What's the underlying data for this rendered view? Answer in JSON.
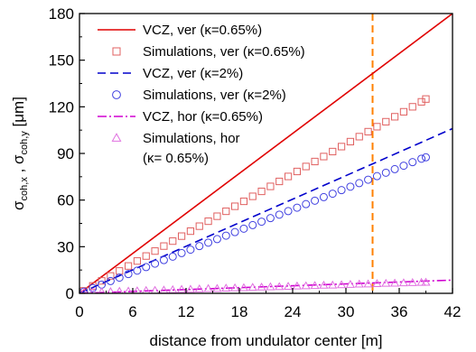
{
  "chart_data": {
    "type": "line",
    "title": "",
    "xlabel": "distance from undulator center [m]",
    "ylabel_parts": {
      "sigma1": "σ",
      "sub1": "coh,x",
      "sep": " , ",
      "sigma2": "σ",
      "sub2": "coh,y",
      "unit": " [μm]"
    },
    "xlim": [
      0,
      42
    ],
    "ylim": [
      0,
      180
    ],
    "x_ticks": [
      0,
      6,
      12,
      18,
      24,
      30,
      36,
      42
    ],
    "y_ticks": [
      0,
      30,
      60,
      90,
      120,
      150,
      180
    ],
    "grid": false,
    "legend_position": "top-left",
    "vertical_marker": {
      "x": 33,
      "color": "#FF8000",
      "style": "dashed"
    },
    "series": [
      {
        "name": "VCZ, ver (κ=0.65%)",
        "kind": "line",
        "color": "#E00000",
        "dash": "solid",
        "x": [
          0,
          42
        ],
        "y": [
          0,
          180
        ]
      },
      {
        "name": "Simulations, ver (κ=0.65%)",
        "kind": "marker",
        "marker": "square",
        "color": "#E06060",
        "x": [
          0.5,
          1.5,
          2.5,
          3.5,
          4.5,
          5.5,
          6.5,
          7.5,
          8.5,
          9.5,
          10.5,
          11.5,
          12.5,
          13.5,
          14.5,
          15.5,
          16.5,
          17.5,
          18.5,
          19.5,
          20.5,
          21.5,
          22.5,
          23.5,
          24.5,
          25.5,
          26.5,
          27.5,
          28.5,
          29.5,
          30.5,
          31.5,
          32.5,
          33.5,
          34.5,
          35.5,
          36.5,
          37.5,
          38.5,
          39.0
        ],
        "y": [
          1.6,
          4.8,
          8.0,
          11.2,
          14.4,
          17.6,
          20.8,
          24.0,
          27.2,
          30.4,
          33.6,
          36.8,
          40.0,
          43.2,
          46.4,
          49.6,
          52.8,
          56.0,
          59.2,
          62.4,
          65.6,
          68.8,
          72.0,
          75.2,
          78.4,
          81.6,
          84.8,
          88.0,
          91.2,
          94.4,
          97.6,
          100.8,
          104.0,
          107.2,
          110.4,
          113.6,
          116.8,
          120.0,
          123.2,
          125.0
        ]
      },
      {
        "name": "VCZ, ver (κ=2%)",
        "kind": "line",
        "color": "#0000CC",
        "dash": "dashed",
        "x": [
          0,
          42
        ],
        "y": [
          0,
          106
        ]
      },
      {
        "name": "Simulations, ver (κ=2%)",
        "kind": "marker",
        "marker": "circle",
        "color": "#4040E0",
        "x": [
          0.5,
          1.5,
          2.5,
          3.5,
          4.5,
          5.5,
          6.5,
          7.5,
          8.5,
          9.5,
          10.5,
          11.5,
          12.5,
          13.5,
          14.5,
          15.5,
          16.5,
          17.5,
          18.5,
          19.5,
          20.5,
          21.5,
          22.5,
          23.5,
          24.5,
          25.5,
          26.5,
          27.5,
          28.5,
          29.5,
          30.5,
          31.5,
          32.5,
          33.5,
          34.5,
          35.5,
          36.5,
          37.5,
          38.5,
          39.0
        ],
        "y": [
          1.1,
          3.4,
          5.6,
          7.9,
          10.1,
          12.4,
          14.6,
          16.9,
          19.1,
          21.4,
          23.6,
          25.9,
          28.1,
          30.4,
          32.6,
          34.9,
          37.1,
          39.4,
          41.6,
          43.9,
          46.1,
          48.4,
          50.6,
          52.9,
          55.1,
          57.4,
          59.6,
          61.9,
          64.1,
          66.4,
          68.6,
          70.9,
          73.1,
          75.4,
          77.6,
          79.9,
          82.1,
          84.4,
          86.6,
          87.5
        ]
      },
      {
        "name": "VCZ, hor (κ=0.65%)",
        "kind": "line",
        "color": "#D000D0",
        "dash": "dashdot",
        "x": [
          0,
          42
        ],
        "y": [
          0,
          8.5
        ]
      },
      {
        "name": "Simulations, hor (κ= 0.65%)",
        "legend_lines": [
          "Simulations, hor",
          "(κ= 0.65%)"
        ],
        "kind": "marker",
        "marker": "triangle",
        "color": "#E070E0",
        "x": [
          0.5,
          1.5,
          2.5,
          3.5,
          4.5,
          5.5,
          6.5,
          7.5,
          8.5,
          9.5,
          10.5,
          11.5,
          12.5,
          13.5,
          14.5,
          15.5,
          16.5,
          17.5,
          18.5,
          19.5,
          20.5,
          21.5,
          22.5,
          23.5,
          24.5,
          25.5,
          26.5,
          27.5,
          28.5,
          29.5,
          30.5,
          31.5,
          32.5,
          33.5,
          34.5,
          35.5,
          36.5,
          37.5,
          38.5,
          39.0
        ],
        "y": [
          0.5,
          0.7,
          0.8,
          1.0,
          1.2,
          1.3,
          1.5,
          1.7,
          1.8,
          2.0,
          2.2,
          2.4,
          2.5,
          2.7,
          2.9,
          3.0,
          3.2,
          3.4,
          3.5,
          3.7,
          3.9,
          4.1,
          4.2,
          4.4,
          4.6,
          4.7,
          4.9,
          5.1,
          5.2,
          5.4,
          5.6,
          5.8,
          5.9,
          6.1,
          6.3,
          6.4,
          6.6,
          6.8,
          6.9,
          7.0
        ]
      }
    ]
  }
}
